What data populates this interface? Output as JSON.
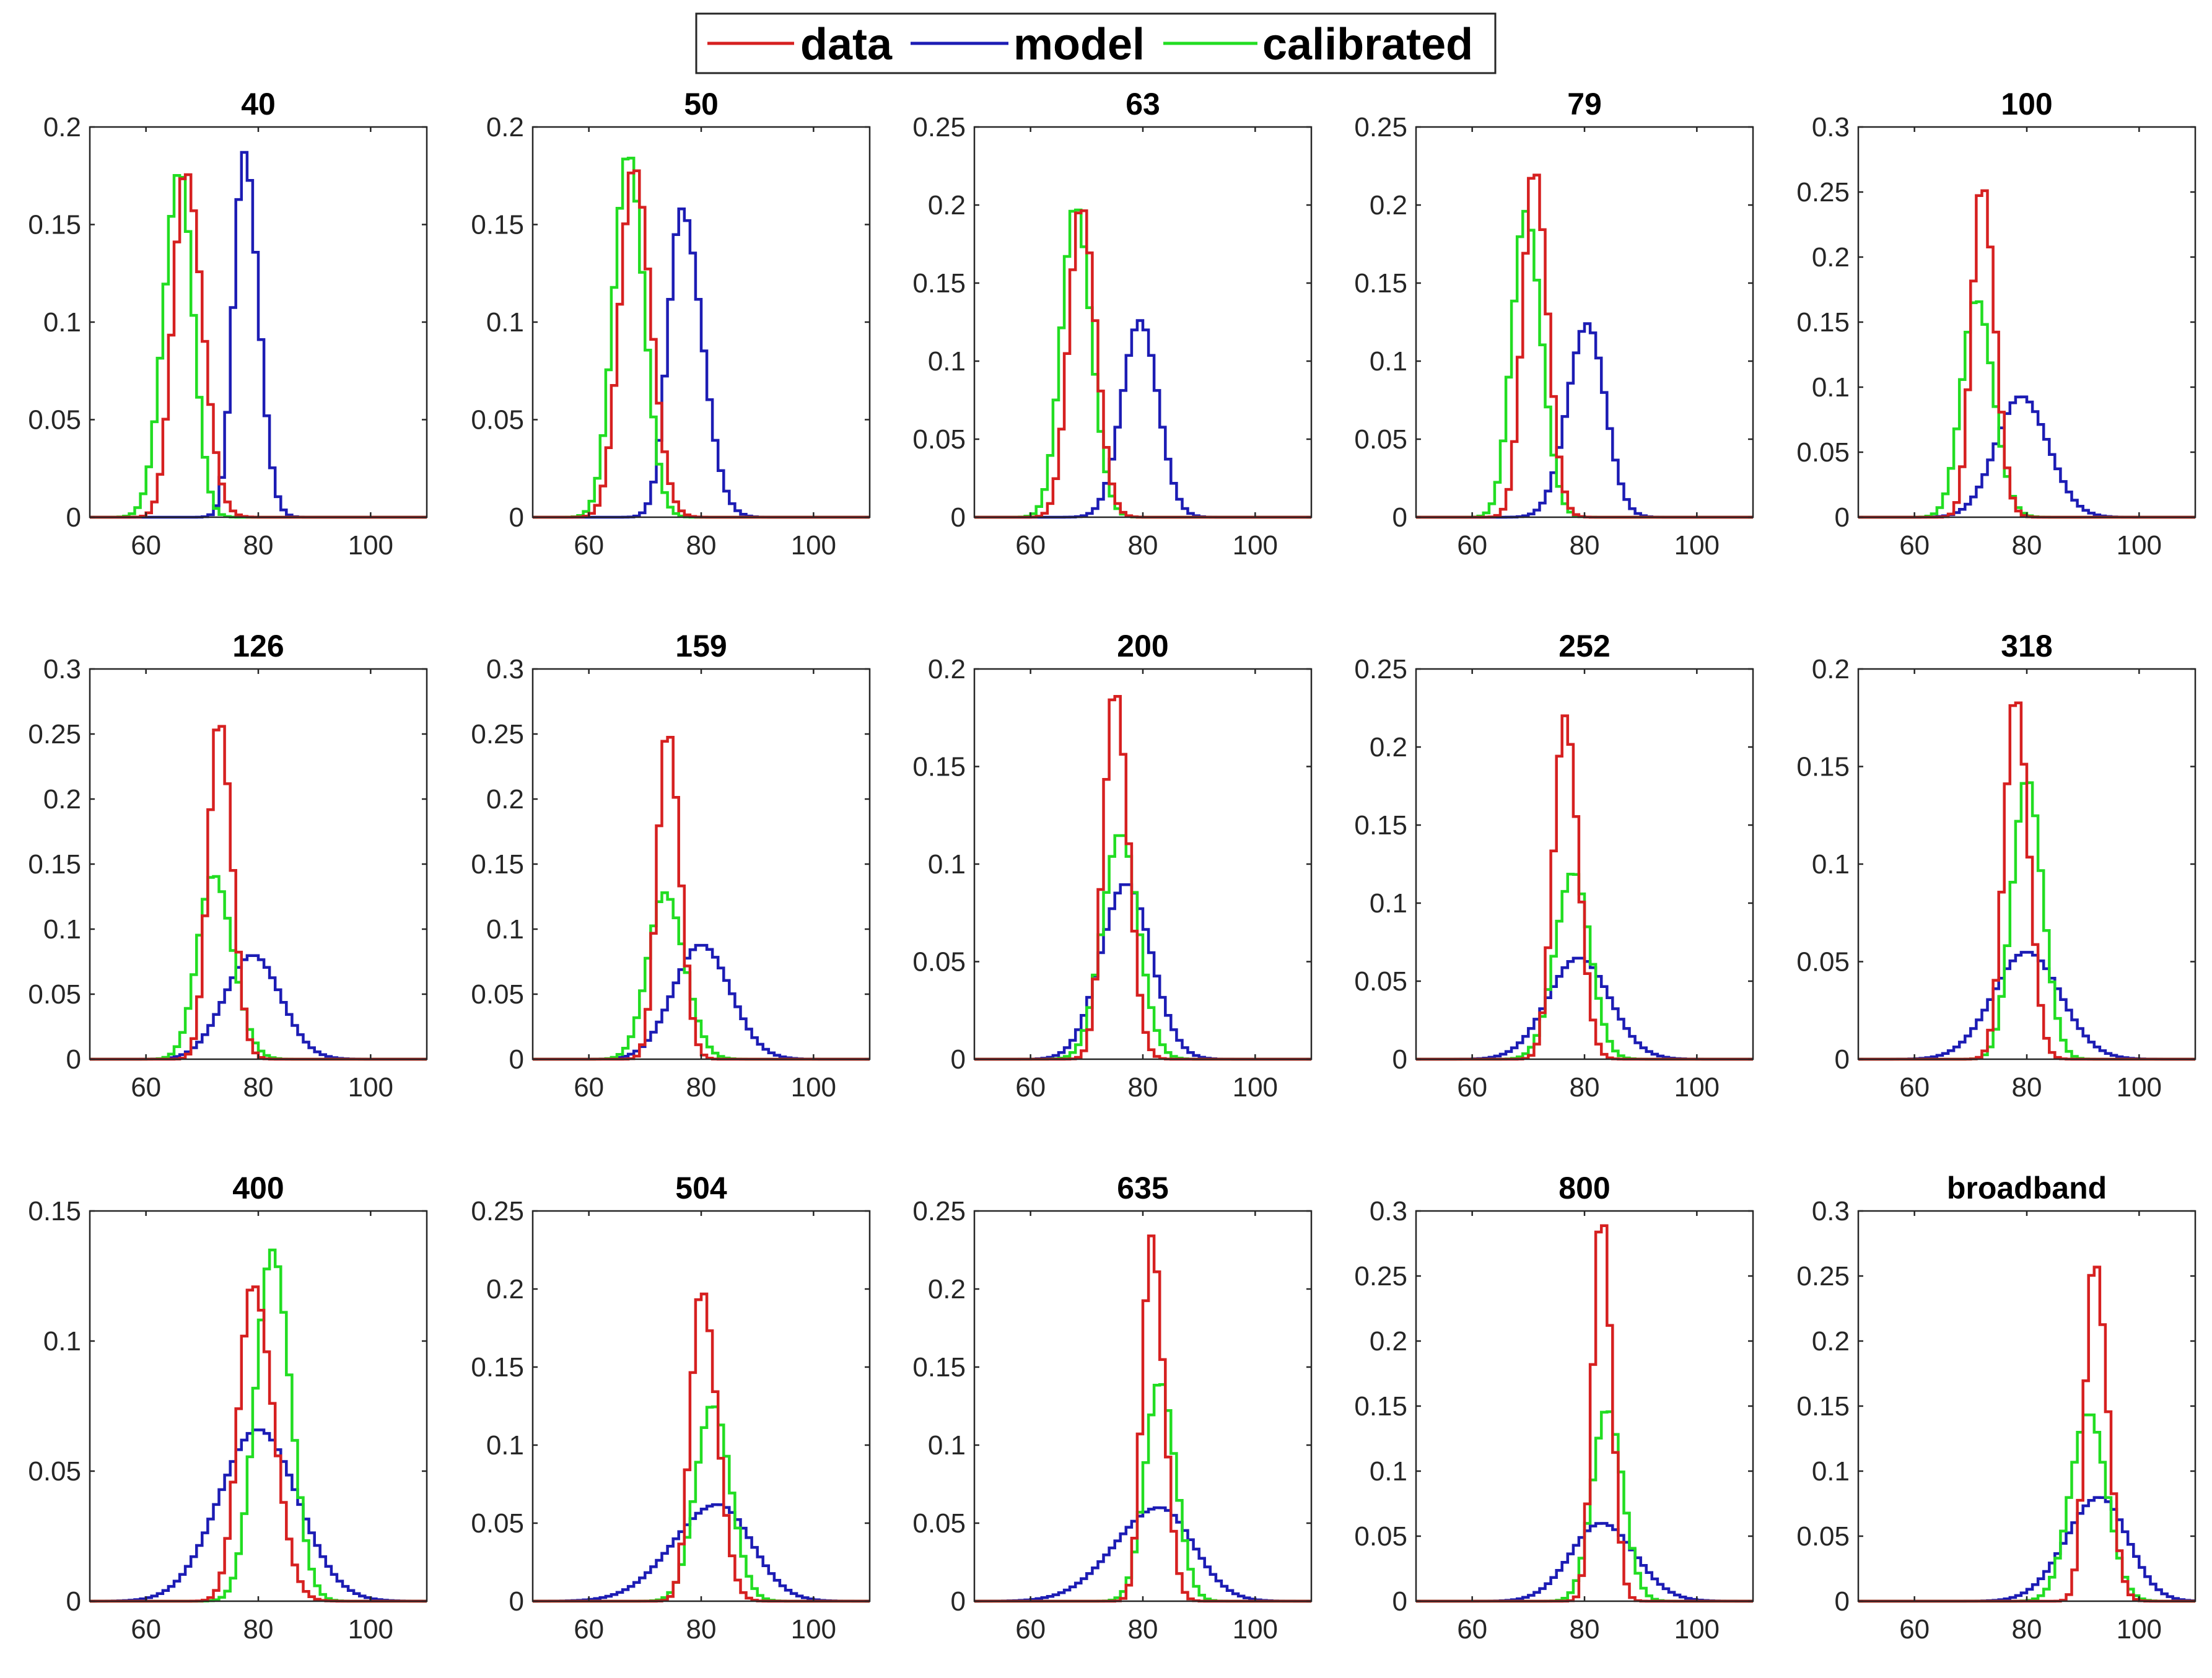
{
  "figure": {
    "legend": [
      {
        "label": "data",
        "color": "#d62020"
      },
      {
        "label": "model",
        "color": "#1c1cb4"
      },
      {
        "label": "calibrated",
        "color": "#22dd22"
      }
    ]
  },
  "chart_data": [
    {
      "type": "histogram",
      "title": "40",
      "xlim": [
        50,
        110
      ],
      "ylim": [
        0,
        0.2
      ],
      "xticks": [
        60,
        80,
        100
      ],
      "yticks": [
        0,
        0.05,
        0.1,
        0.15,
        0.2
      ],
      "series": [
        {
          "name": "data",
          "center": 67,
          "sigma_left": 2.2,
          "sigma_right": 3.0,
          "peak": 0.178
        },
        {
          "name": "model",
          "center": 77.5,
          "sigma_left": 1.9,
          "sigma_right": 2.5,
          "peak": 0.187
        },
        {
          "name": "calibrated",
          "center": 66,
          "sigma_left": 2.8,
          "sigma_right": 2.4,
          "peak": 0.178
        }
      ]
    },
    {
      "type": "histogram",
      "title": "50",
      "xlim": [
        50,
        110
      ],
      "ylim": [
        0,
        0.2
      ],
      "xticks": [
        60,
        80,
        100
      ],
      "yticks": [
        0,
        0.05,
        0.1,
        0.15,
        0.2
      ],
      "series": [
        {
          "name": "data",
          "center": 68,
          "sigma_left": 2.5,
          "sigma_right": 3.0,
          "peak": 0.18
        },
        {
          "name": "model",
          "center": 76.5,
          "sigma_left": 2.4,
          "sigma_right": 3.6,
          "peak": 0.158
        },
        {
          "name": "calibrated",
          "center": 67,
          "sigma_left": 2.6,
          "sigma_right": 2.8,
          "peak": 0.187
        }
      ]
    },
    {
      "type": "histogram",
      "title": "63",
      "xlim": [
        50,
        110
      ],
      "ylim": [
        0,
        0.25
      ],
      "xticks": [
        60,
        80,
        100
      ],
      "yticks": [
        0,
        0.05,
        0.1,
        0.15,
        0.2,
        0.25
      ],
      "series": [
        {
          "name": "data",
          "center": 69,
          "sigma_left": 2.2,
          "sigma_right": 2.6,
          "peak": 0.2
        },
        {
          "name": "model",
          "center": 79.5,
          "sigma_left": 3.2,
          "sigma_right": 3.2,
          "peak": 0.126
        },
        {
          "name": "calibrated",
          "center": 68,
          "sigma_left": 2.5,
          "sigma_right": 2.8,
          "peak": 0.2
        }
      ]
    },
    {
      "type": "histogram",
      "title": "79",
      "xlim": [
        50,
        110
      ],
      "ylim": [
        0,
        0.25
      ],
      "xticks": [
        60,
        80,
        100
      ],
      "yticks": [
        0,
        0.05,
        0.1,
        0.15,
        0.2,
        0.25
      ],
      "series": [
        {
          "name": "data",
          "center": 71,
          "sigma_left": 2.0,
          "sigma_right": 2.4,
          "peak": 0.224
        },
        {
          "name": "model",
          "center": 80.5,
          "sigma_left": 3.5,
          "sigma_right": 3.2,
          "peak": 0.124
        },
        {
          "name": "calibrated",
          "center": 69.5,
          "sigma_left": 2.4,
          "sigma_right": 2.8,
          "peak": 0.196
        }
      ]
    },
    {
      "type": "histogram",
      "title": "100",
      "xlim": [
        50,
        110
      ],
      "ylim": [
        0,
        0.3
      ],
      "xticks": [
        60,
        80,
        100
      ],
      "yticks": [
        0,
        0.05,
        0.1,
        0.15,
        0.2,
        0.25,
        0.3
      ],
      "series": [
        {
          "name": "data",
          "center": 72,
          "sigma_left": 1.8,
          "sigma_right": 2.3,
          "peak": 0.257
        },
        {
          "name": "model",
          "center": 79,
          "sigma_left": 4.5,
          "sigma_right": 4.8,
          "peak": 0.093
        },
        {
          "name": "calibrated",
          "center": 71,
          "sigma_left": 2.6,
          "sigma_right": 3.0,
          "peak": 0.168
        }
      ]
    },
    {
      "type": "histogram",
      "title": "126",
      "xlim": [
        50,
        110
      ],
      "ylim": [
        0,
        0.3
      ],
      "xticks": [
        60,
        80,
        100
      ],
      "yticks": [
        0,
        0.05,
        0.1,
        0.15,
        0.2,
        0.25,
        0.3
      ],
      "series": [
        {
          "name": "data",
          "center": 73,
          "sigma_left": 1.9,
          "sigma_right": 2.3,
          "peak": 0.262
        },
        {
          "name": "model",
          "center": 79,
          "sigma_left": 5.0,
          "sigma_right": 5.0,
          "peak": 0.08
        },
        {
          "name": "calibrated",
          "center": 72,
          "sigma_left": 2.8,
          "sigma_right": 3.4,
          "peak": 0.142
        }
      ]
    },
    {
      "type": "histogram",
      "title": "159",
      "xlim": [
        50,
        110
      ],
      "ylim": [
        0,
        0.3
      ],
      "xticks": [
        60,
        80,
        100
      ],
      "yticks": [
        0,
        0.05,
        0.1,
        0.15,
        0.2,
        0.25,
        0.3
      ],
      "series": [
        {
          "name": "data",
          "center": 74,
          "sigma_left": 1.8,
          "sigma_right": 2.2,
          "peak": 0.254
        },
        {
          "name": "model",
          "center": 80,
          "sigma_left": 5.0,
          "sigma_right": 5.2,
          "peak": 0.088
        },
        {
          "name": "calibrated",
          "center": 73.5,
          "sigma_left": 3.0,
          "sigma_right": 3.5,
          "peak": 0.128
        }
      ]
    },
    {
      "type": "histogram",
      "title": "200",
      "xlim": [
        50,
        110
      ],
      "ylim": [
        0,
        0.2
      ],
      "xticks": [
        60,
        80,
        100
      ],
      "yticks": [
        0,
        0.05,
        0.1,
        0.15,
        0.2
      ],
      "series": [
        {
          "name": "data",
          "center": 75,
          "sigma_left": 2.0,
          "sigma_right": 2.4,
          "peak": 0.19
        },
        {
          "name": "model",
          "center": 77,
          "sigma_left": 4.5,
          "sigma_right": 4.5,
          "peak": 0.09
        },
        {
          "name": "calibrated",
          "center": 76,
          "sigma_left": 3.2,
          "sigma_right": 3.2,
          "peak": 0.116
        }
      ]
    },
    {
      "type": "histogram",
      "title": "252",
      "xlim": [
        50,
        110
      ],
      "ylim": [
        0,
        0.25
      ],
      "xticks": [
        60,
        80,
        100
      ],
      "yticks": [
        0,
        0.05,
        0.1,
        0.15,
        0.2,
        0.25
      ],
      "series": [
        {
          "name": "data",
          "center": 76.5,
          "sigma_left": 2.0,
          "sigma_right": 2.4,
          "peak": 0.22
        },
        {
          "name": "model",
          "center": 79,
          "sigma_left": 5.5,
          "sigma_right": 5.5,
          "peak": 0.065
        },
        {
          "name": "calibrated",
          "center": 78,
          "sigma_left": 3.2,
          "sigma_right": 3.0,
          "peak": 0.12
        }
      ]
    },
    {
      "type": "histogram",
      "title": "318",
      "xlim": [
        50,
        110
      ],
      "ylim": [
        0,
        0.2
      ],
      "xticks": [
        60,
        80,
        100
      ],
      "yticks": [
        0,
        0.05,
        0.1,
        0.15,
        0.2
      ],
      "series": [
        {
          "name": "data",
          "center": 78,
          "sigma_left": 2.0,
          "sigma_right": 2.3,
          "peak": 0.187
        },
        {
          "name": "model",
          "center": 80,
          "sigma_left": 6.0,
          "sigma_right": 6.0,
          "peak": 0.055
        },
        {
          "name": "calibrated",
          "center": 80,
          "sigma_left": 2.6,
          "sigma_right": 2.8,
          "peak": 0.144
        }
      ]
    },
    {
      "type": "histogram",
      "title": "400",
      "xlim": [
        50,
        110
      ],
      "ylim": [
        0,
        0.15
      ],
      "xticks": [
        60,
        80,
        100
      ],
      "yticks": [
        0,
        0.05,
        0.1,
        0.15
      ],
      "series": [
        {
          "name": "data",
          "center": 79,
          "sigma_left": 2.5,
          "sigma_right": 3.6,
          "peak": 0.122
        },
        {
          "name": "model",
          "center": 80,
          "sigma_left": 7.0,
          "sigma_right": 7.0,
          "peak": 0.066
        },
        {
          "name": "calibrated",
          "center": 82.5,
          "sigma_left": 3.0,
          "sigma_right": 3.2,
          "peak": 0.135
        }
      ]
    },
    {
      "type": "histogram",
      "title": "504",
      "xlim": [
        50,
        110
      ],
      "ylim": [
        0,
        0.25
      ],
      "xticks": [
        60,
        80,
        100
      ],
      "yticks": [
        0,
        0.05,
        0.1,
        0.15,
        0.2,
        0.25
      ],
      "series": [
        {
          "name": "data",
          "center": 80,
          "sigma_left": 1.9,
          "sigma_right": 2.8,
          "peak": 0.2
        },
        {
          "name": "model",
          "center": 83,
          "sigma_left": 8.0,
          "sigma_right": 6.0,
          "peak": 0.062
        },
        {
          "name": "calibrated",
          "center": 82,
          "sigma_left": 3.0,
          "sigma_right": 3.2,
          "peak": 0.126
        }
      ]
    },
    {
      "type": "histogram",
      "title": "635",
      "xlim": [
        50,
        110
      ],
      "ylim": [
        0,
        0.25
      ],
      "xticks": [
        60,
        80,
        100
      ],
      "yticks": [
        0,
        0.05,
        0.1,
        0.15,
        0.2,
        0.25
      ],
      "series": [
        {
          "name": "data",
          "center": 81.5,
          "sigma_left": 1.6,
          "sigma_right": 2.2,
          "peak": 0.234
        },
        {
          "name": "model",
          "center": 83,
          "sigma_left": 8.0,
          "sigma_right": 6.0,
          "peak": 0.06
        },
        {
          "name": "calibrated",
          "center": 83,
          "sigma_left": 2.6,
          "sigma_right": 2.8,
          "peak": 0.141
        }
      ]
    },
    {
      "type": "histogram",
      "title": "800",
      "xlim": [
        50,
        110
      ],
      "ylim": [
        0,
        0.3
      ],
      "xticks": [
        60,
        80,
        100
      ],
      "yticks": [
        0,
        0.05,
        0.1,
        0.15,
        0.2,
        0.25,
        0.3
      ],
      "series": [
        {
          "name": "data",
          "center": 83,
          "sigma_left": 1.5,
          "sigma_right": 1.8,
          "peak": 0.3
        },
        {
          "name": "model",
          "center": 83,
          "sigma_left": 5.5,
          "sigma_right": 6.0,
          "peak": 0.06
        },
        {
          "name": "calibrated",
          "center": 84,
          "sigma_left": 2.6,
          "sigma_right": 2.8,
          "peak": 0.148
        }
      ]
    },
    {
      "type": "histogram",
      "title": "broadband",
      "xlim": [
        50,
        110
      ],
      "ylim": [
        0,
        0.3
      ],
      "xticks": [
        60,
        80,
        100
      ],
      "yticks": [
        0,
        0.05,
        0.1,
        0.15,
        0.2,
        0.25,
        0.3
      ],
      "series": [
        {
          "name": "data",
          "center": 92,
          "sigma_left": 1.6,
          "sigma_right": 2.3,
          "peak": 0.263
        },
        {
          "name": "model",
          "center": 93,
          "sigma_left": 6.0,
          "sigma_right": 5.0,
          "peak": 0.08
        },
        {
          "name": "calibrated",
          "center": 91,
          "sigma_left": 3.2,
          "sigma_right": 3.2,
          "peak": 0.145
        }
      ]
    }
  ]
}
